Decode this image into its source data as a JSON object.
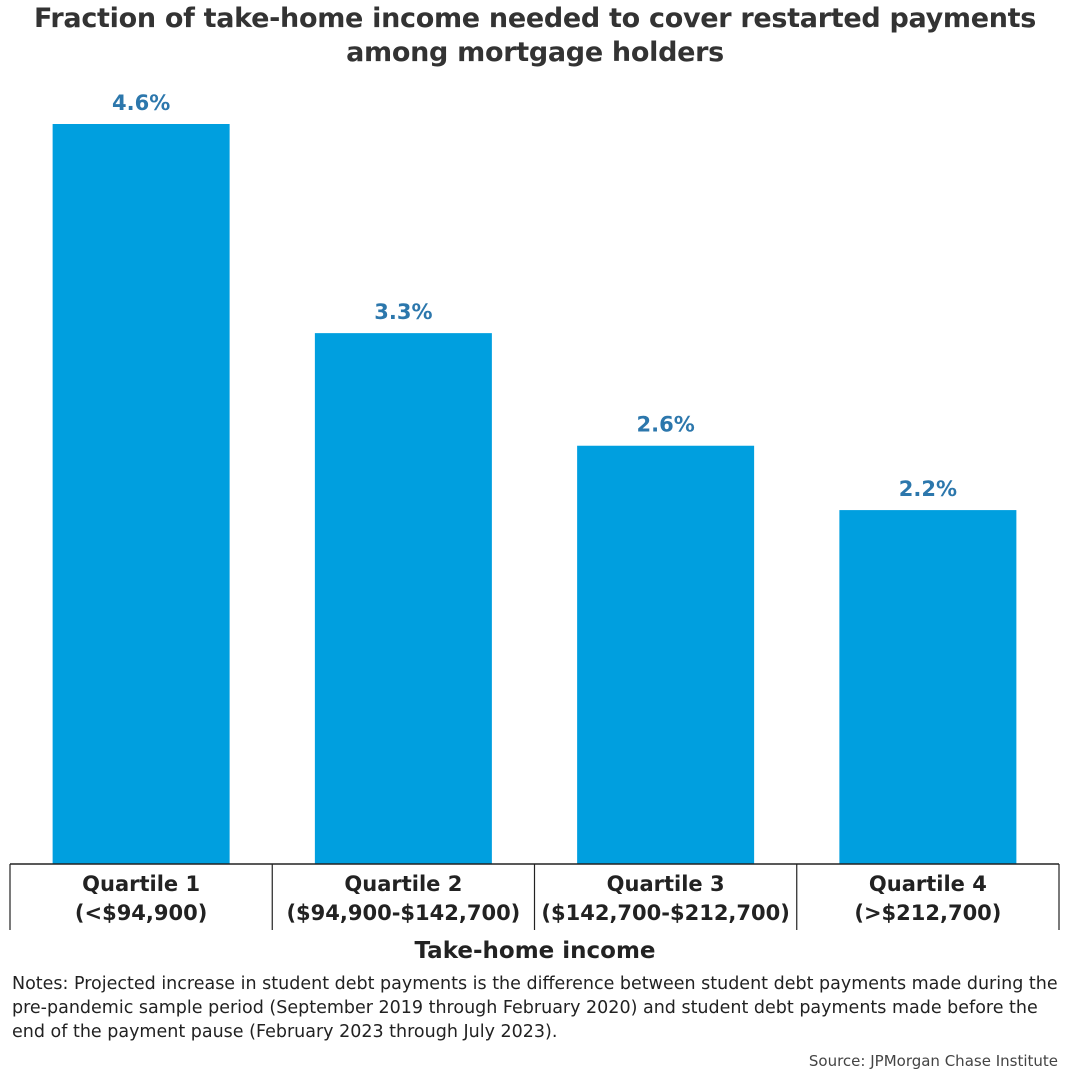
{
  "title": "Fraction of take-home income needed to cover restarted payments among mortgage holders",
  "chart_data": {
    "type": "bar",
    "title": "Fraction of take-home income needed to cover restarted payments among mortgage holders",
    "categories": [
      {
        "line1": "Quartile 1",
        "line2": "(<$94,900)"
      },
      {
        "line1": "Quartile 2",
        "line2": "($94,900-$142,700)"
      },
      {
        "line1": "Quartile 3",
        "line2": "($142,700-$212,700)"
      },
      {
        "line1": "Quartile 4",
        "line2": "(>$212,700)"
      }
    ],
    "values": [
      4.6,
      3.3,
      2.6,
      2.2
    ],
    "value_labels": [
      "4.6%",
      "3.3%",
      "2.6%",
      "2.2%"
    ],
    "xlabel": "Take-home income",
    "ylabel": "",
    "ylim": [
      0,
      4.6
    ],
    "grid": false,
    "legend": "none",
    "bar_color": "#009fdf",
    "label_color": "#2c77ac"
  },
  "notes": "Notes: Projected increase in student debt payments is the difference between student debt payments made during the pre-pandemic sample period (September 2019 through February 2020) and student debt payments made before the end of the payment pause (February 2023 through July 2023).",
  "source": "Source: JPMorgan Chase Institute"
}
